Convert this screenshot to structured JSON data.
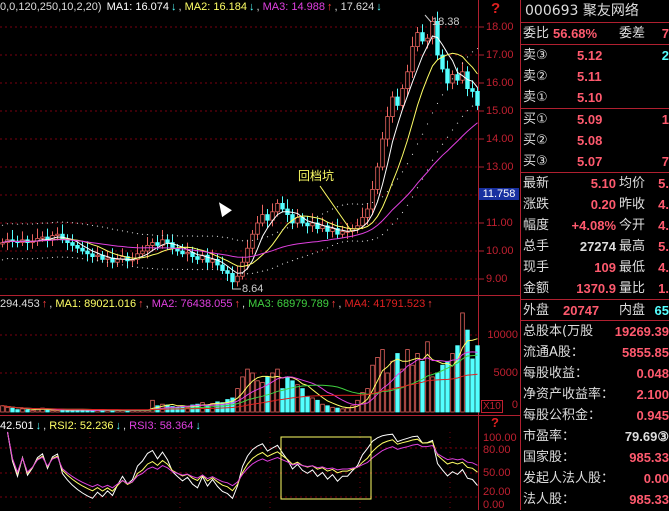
{
  "main_legend": {
    "params": "0,0,120,250,10,2,20)",
    "ma1": "MA1: 16.074",
    "ma2": "MA2: 16.184",
    "ma3": "MA3: 14.988",
    "v4": "17.624"
  },
  "volume_legend": {
    "vol": "294.453",
    "ma1": "MA1: 89021.016",
    "ma2": "MA2: 76438.055",
    "ma3": "MA3: 68979.789",
    "ma4": "MA4: 41791.523"
  },
  "rsi_legend": {
    "rsi1": "42.501",
    "rsi2": "RSI2: 52.236",
    "rsi3": "RSI3: 58.364"
  },
  "annotations": {
    "high_label": "18.38",
    "low_label": "8.64",
    "pit_label": "回档坑"
  },
  "price_axis": [
    "18.00",
    "17.00",
    "16.00",
    "15.00",
    "14.00",
    "13.00",
    "11.00",
    "10.00",
    "9.00"
  ],
  "current_price_tag": "11.758",
  "volume_axis": [
    "10000",
    "5000",
    "0"
  ],
  "volume_scale_badge": "X10",
  "rsi_axis": [
    "100.00",
    "80.00",
    "50.00",
    "20.00",
    "0.00"
  ],
  "help_icon": "?",
  "panel": {
    "title": "000693 聚友网络",
    "weibi": {
      "label": "委比",
      "value": "56.68%",
      "label2": "委差",
      "part": "7"
    },
    "sells": [
      {
        "label": "卖③",
        "price": "5.12",
        "part": "2"
      },
      {
        "label": "卖②",
        "price": "5.11",
        "part": ""
      },
      {
        "label": "卖①",
        "price": "5.10",
        "part": ""
      }
    ],
    "buys": [
      {
        "label": "买①",
        "price": "5.09",
        "part": "1"
      },
      {
        "label": "买②",
        "price": "5.08",
        "part": ""
      },
      {
        "label": "买③",
        "price": "5.07",
        "part": "7"
      }
    ],
    "quote": [
      {
        "label": "最新",
        "value": "5.10",
        "label2": "均价",
        "part": "5."
      },
      {
        "label": "涨跌",
        "value": "0.20",
        "label2": "昨收",
        "part": "4."
      },
      {
        "label": "幅度",
        "value": "+4.08%",
        "label2": "今开",
        "part": "4."
      },
      {
        "label": "总手",
        "value": "27274",
        "label2": "最高",
        "part": "5."
      },
      {
        "label": "现手",
        "value": "109",
        "label2": "最低",
        "part": "4."
      },
      {
        "label": "金额",
        "value": "1370.9",
        "label2": "量比",
        "part": "1."
      }
    ],
    "outer": {
      "label": "外盘",
      "value": "20747",
      "label2": "内盘",
      "part": "65"
    },
    "fundamentals": [
      {
        "label": "总股本(万股",
        "value": "19269.39"
      },
      {
        "label": "流通A股：",
        "value": "5855.85"
      },
      {
        "label": "每股收益：",
        "value": "0.048"
      },
      {
        "label": "净资产收益率：",
        "value": "2.100"
      },
      {
        "label": "每股公积金：",
        "value": "0.945"
      },
      {
        "label": "市盈率：",
        "value": "79.69③"
      },
      {
        "label": "国家股：",
        "value": "985.33"
      },
      {
        "label": "发起人法人股：",
        "value": "0.00"
      },
      {
        "label": "法人股：",
        "value": "985.33"
      }
    ]
  },
  "colors": {
    "up": "#e8645f",
    "down": "#54ffff",
    "ma1": "#ffffff",
    "ma2": "#ffff66",
    "ma3": "#e040e0",
    "grid": "#7a0010",
    "border": "#b02030"
  },
  "chart_data": {
    "type": "candlestick",
    "closes": [
      10.3,
      10.4,
      10.35,
      10.3,
      10.4,
      10.3,
      10.35,
      10.45,
      10.5,
      10.4,
      10.55,
      10.6,
      10.4,
      10.3,
      10.2,
      10.1,
      10.0,
      9.9,
      9.8,
      9.85,
      9.7,
      9.75,
      9.6,
      9.7,
      9.8,
      9.65,
      9.7,
      9.9,
      10.0,
      10.2,
      10.3,
      10.2,
      10.4,
      10.3,
      10.1,
      10.0,
      9.9,
      9.95,
      9.8,
      9.7,
      9.85,
      9.6,
      9.7,
      9.5,
      9.3,
      9.2,
      8.9,
      9.1,
      9.6,
      10.1,
      10.6,
      11.0,
      11.3,
      11.1,
      11.4,
      11.7,
      11.5,
      11.3,
      11.0,
      11.2,
      11.0,
      10.9,
      11.0,
      10.8,
      10.9,
      10.7,
      10.8,
      10.6,
      10.7,
      10.7,
      10.8,
      10.9,
      11.2,
      11.5,
      12.2,
      13.0,
      14.0,
      14.8,
      15.5,
      15.2,
      15.8,
      16.4,
      17.3,
      17.8,
      17.5,
      17.6,
      18.2,
      17.0,
      16.5,
      16.0,
      16.3,
      16.1,
      16.4,
      15.8,
      15.7,
      15.2
    ],
    "volumes": [
      800,
      600,
      500,
      300,
      400,
      300,
      200,
      300,
      500,
      300,
      200,
      200,
      300,
      200,
      200,
      300,
      200,
      200,
      200,
      300,
      200,
      200,
      200,
      200,
      200,
      200,
      200,
      200,
      200,
      200,
      1500,
      800,
      1000,
      900,
      700,
      600,
      800,
      600,
      900,
      1000,
      1200,
      900,
      1100,
      1300,
      1200,
      1600,
      1800,
      3000,
      4500,
      5500,
      5000,
      4000,
      3800,
      4500,
      5000,
      5500,
      3000,
      4500,
      4000,
      3500,
      3000,
      2000,
      1800,
      1500,
      1000,
      800,
      600,
      500,
      400,
      500,
      800,
      1500,
      2500,
      3000,
      6000,
      7000,
      8000,
      5000,
      6500,
      7500,
      5500,
      8000,
      6000,
      7500,
      6500,
      9000,
      4500,
      5000,
      6000,
      6500,
      7500,
      8500,
      12700,
      10500,
      6800,
      8500
    ],
    "high": 18.38,
    "low": 8.64,
    "price_range": [
      8.6,
      18.9
    ],
    "volume_range": [
      0,
      13500
    ],
    "rsi_range": [
      0,
      100
    ],
    "grid": true
  }
}
